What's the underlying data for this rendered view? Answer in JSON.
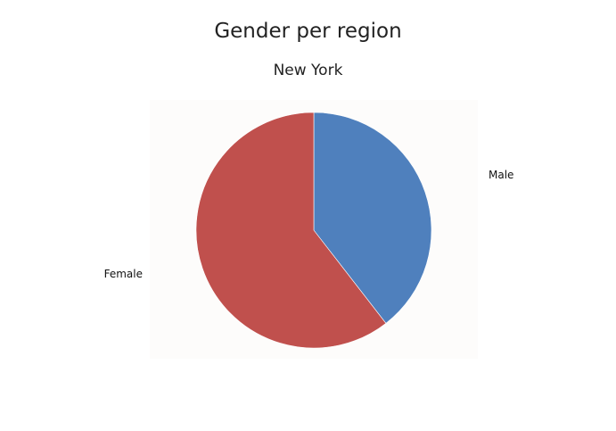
{
  "chart_data": {
    "type": "pie",
    "title": "Gender per region",
    "subtitle": "New York",
    "categories": [
      "Male",
      "Female"
    ],
    "values": [
      39.5,
      60.5
    ],
    "colors": [
      "#4f80bd",
      "#c0504d"
    ],
    "start": "top",
    "direction": "clockwise"
  }
}
